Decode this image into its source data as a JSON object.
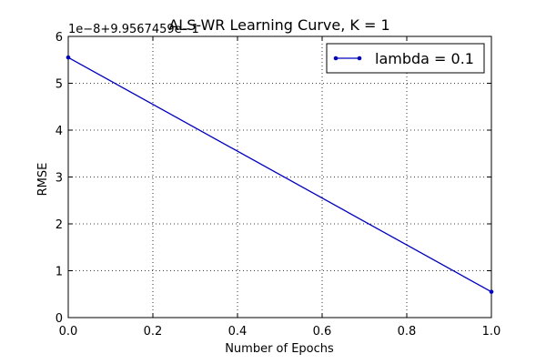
{
  "chart_data": {
    "type": "line",
    "title": "ALS-WR Learning Curve,  K = 1",
    "xlabel": "Number of Epochs",
    "ylabel": "RMSE",
    "y_offset_text": "1e−8+9.9567459e−1",
    "xlim": [
      0.0,
      1.0
    ],
    "ylim": [
      0,
      6
    ],
    "x_ticks": [
      "0.0",
      "0.2",
      "0.4",
      "0.6",
      "0.8",
      "1.0"
    ],
    "y_ticks": [
      "0",
      "1",
      "2",
      "3",
      "4",
      "5",
      "6"
    ],
    "grid": true,
    "legend_position": "top-right",
    "series": [
      {
        "name": "lambda = 0.1",
        "color": "#0000bf",
        "x": [
          0.0,
          1.0
        ],
        "y": [
          5.55,
          0.55
        ]
      }
    ]
  }
}
